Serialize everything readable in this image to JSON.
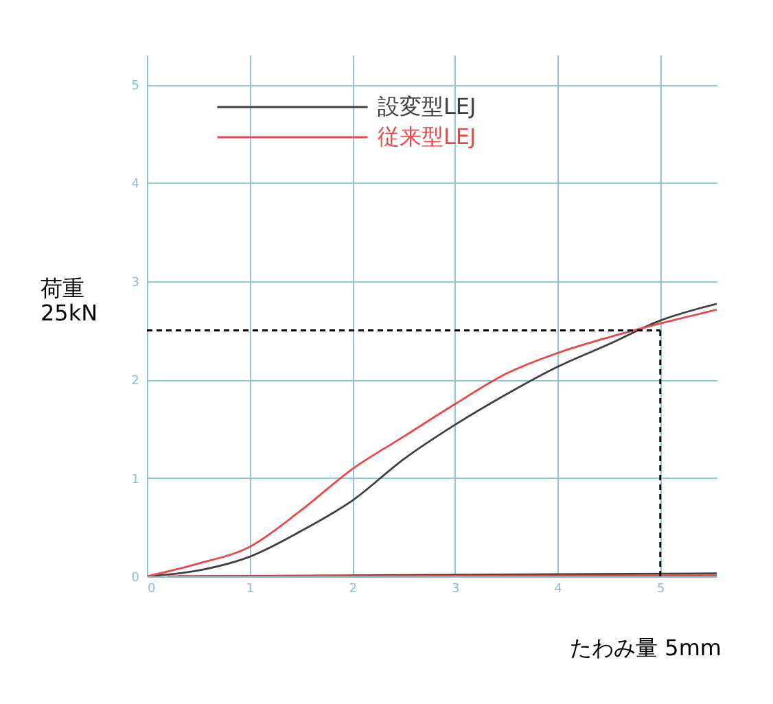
{
  "chart_data": {
    "type": "line",
    "xlabel": "たわみ量  5mm",
    "ylabel": "荷重\n25kN",
    "x": [
      0,
      0.5,
      1,
      1.5,
      2,
      2.5,
      3,
      3.5,
      4,
      4.5,
      5,
      5.55
    ],
    "series": [
      {
        "name": "設変型LEJ",
        "color": "#404040",
        "values": [
          0,
          0.06,
          0.2,
          0.46,
          0.77,
          1.19,
          1.54,
          1.85,
          2.13,
          2.36,
          2.6,
          2.77
        ]
      },
      {
        "name": "従来型LEJ",
        "color": "#e84848",
        "values": [
          0,
          0.13,
          0.3,
          0.67,
          1.09,
          1.42,
          1.75,
          2.06,
          2.27,
          2.43,
          2.57,
          2.71
        ]
      },
      {
        "color": "#404040",
        "x": [
          0.3,
          5.55
        ],
        "values": [
          0,
          0.03
        ]
      },
      {
        "color": "#e84848",
        "x": [
          0.2,
          5.55
        ],
        "values": [
          0,
          0.01
        ]
      }
    ],
    "xlim": [
      0,
      5.55
    ],
    "ylim": [
      0,
      5.3
    ],
    "xticks": [
      0,
      1,
      2,
      3,
      4,
      5
    ],
    "yticks": [
      0,
      1,
      2,
      3,
      4,
      5
    ],
    "grid": true,
    "legend": "top left",
    "line_style": "solid",
    "marker": "none",
    "ref_lines": [
      {
        "axis": "y",
        "value": 2.5,
        "color": "#000000",
        "line_style": "dashed"
      },
      {
        "axis": "x",
        "value": 5,
        "color": "#000000",
        "line_style": "dashed"
      }
    ]
  }
}
